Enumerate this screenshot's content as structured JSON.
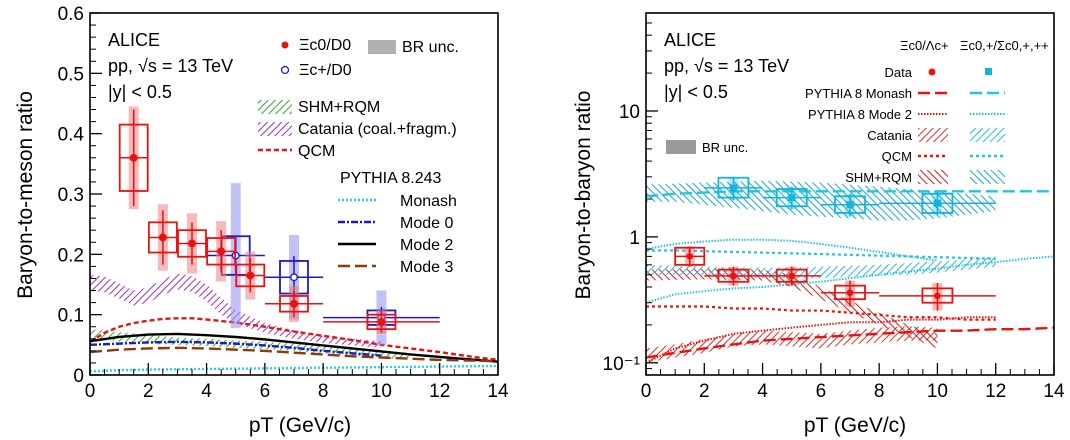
{
  "colors": {
    "xi0": "#e8120e",
    "xi_plus": "#1a1ac8",
    "sigma": "#12b4d8",
    "shm": "#2faa2f",
    "catania_left": "#9b2fc4",
    "catania_right_l": "#e0302a",
    "catania_right_r": "#2bb6dc",
    "qcm": "#e8120e",
    "monash": "#22d4e0",
    "mode0": "#1a1ac8",
    "mode2": "#000000",
    "mode3": "#8b3a0a",
    "br": "#999999"
  },
  "left": {
    "header": [
      "ALICE",
      "pp, √s = 13 TeV",
      "|y| < 0.5"
    ],
    "legend_data": [
      "Ξc0/D0",
      "Ξc+/D0"
    ],
    "br_label": "BR unc.",
    "models": [
      "SHM+RQM",
      "Catania (coal.+fragm.)",
      "QCM"
    ],
    "pythia_title": "PYTHIA 8.243",
    "pythia_modes": [
      "Monash",
      "Mode 0",
      "Mode 2",
      "Mode 3"
    ]
  },
  "right": {
    "header": [
      "ALICE",
      "pp, √s = 13 TeV",
      "|y| < 0.5"
    ],
    "col_headers": [
      "Ξc0/Λc+",
      "Ξc0,+/Σc0,+,++"
    ],
    "rows": [
      "Data",
      "PYTHIA 8 Monash",
      "PYTHIA 8 Mode 2",
      "Catania",
      "QCM",
      "SHM+RQM"
    ],
    "br_label": "BR unc."
  },
  "chart_data": [
    {
      "type": "scatter",
      "xlabel": "pT (GeV/c)",
      "ylabel": "Baryon-to-meson ratio",
      "xlim": [
        0,
        14
      ],
      "ylim": [
        0,
        0.6
      ],
      "xticks": [
        "0",
        "2",
        "4",
        "6",
        "8",
        "10",
        "12",
        "14"
      ],
      "yticks": [
        "0",
        "0.1",
        "0.2",
        "0.3",
        "0.4",
        "0.5",
        "0.6"
      ],
      "series": [
        {
          "name": "Ξc0/D0",
          "points": [
            {
              "x": 1.5,
              "y": 0.36,
              "xerr": 0.5,
              "stat": 0.08,
              "sys": 0.055,
              "br": 0.085
            },
            {
              "x": 2.5,
              "y": 0.228,
              "xerr": 0.5,
              "stat": 0.045,
              "sys": 0.025,
              "br": 0.055
            },
            {
              "x": 3.5,
              "y": 0.218,
              "xerr": 0.5,
              "stat": 0.035,
              "sys": 0.022,
              "br": 0.05
            },
            {
              "x": 4.5,
              "y": 0.205,
              "xerr": 0.5,
              "stat": 0.035,
              "sys": 0.022,
              "br": 0.05
            },
            {
              "x": 5.5,
              "y": 0.165,
              "xerr": 0.5,
              "stat": 0.028,
              "sys": 0.018,
              "br": 0.04
            },
            {
              "x": 7.0,
              "y": 0.118,
              "xerr": 1.0,
              "stat": 0.022,
              "sys": 0.013,
              "br": 0.03
            },
            {
              "x": 10.0,
              "y": 0.088,
              "xerr": 2.0,
              "stat": 0.018,
              "sys": 0.012,
              "br": 0.02
            }
          ]
        },
        {
          "name": "Ξc+/D0",
          "points": [
            {
              "x": 5.0,
              "y": 0.198,
              "xerr": 1.0,
              "stat": 0.03,
              "sys": 0.032,
              "br": 0.12
            },
            {
              "x": 7.0,
              "y": 0.162,
              "xerr": 1.0,
              "stat": 0.035,
              "sys": 0.027,
              "br": 0.07
            },
            {
              "x": 10.0,
              "y": 0.095,
              "xerr": 2.0,
              "stat": 0.018,
              "sys": 0.012,
              "br": 0.045
            }
          ]
        }
      ],
      "models": {
        "SHM+RQM": {
          "x": [
            0,
            0.5,
            1,
            1.5,
            2,
            3,
            4,
            5,
            6,
            7,
            8,
            9,
            10,
            11
          ],
          "lo": [
            0.062,
            0.058,
            0.056,
            0.054,
            0.052,
            0.05,
            0.048,
            0.045,
            0.043,
            0.04,
            0.036,
            0.032,
            0.028,
            0.025
          ],
          "hi": [
            0.076,
            0.074,
            0.071,
            0.069,
            0.066,
            0.062,
            0.06,
            0.057,
            0.055,
            0.052,
            0.048,
            0.044,
            0.04,
            0.037
          ]
        },
        "Catania": {
          "x": [
            0,
            0.5,
            1,
            1.5,
            2,
            2.5,
            3,
            3.5,
            4,
            4.5,
            5,
            6,
            7,
            8,
            9,
            10
          ],
          "lo": [
            0.14,
            0.137,
            0.127,
            0.115,
            0.12,
            0.133,
            0.142,
            0.138,
            0.122,
            0.1,
            0.085,
            0.07,
            0.06,
            0.053,
            0.049,
            0.045
          ],
          "hi": [
            0.166,
            0.163,
            0.152,
            0.14,
            0.145,
            0.158,
            0.168,
            0.164,
            0.15,
            0.128,
            0.108,
            0.086,
            0.074,
            0.065,
            0.06,
            0.056
          ]
        },
        "QCM": {
          "x": [
            0,
            0.5,
            1,
            1.5,
            2,
            2.5,
            3,
            3.5,
            4,
            5,
            6,
            7,
            8,
            9,
            10,
            11,
            12,
            13,
            14
          ],
          "y": [
            0.055,
            0.07,
            0.08,
            0.086,
            0.09,
            0.093,
            0.094,
            0.094,
            0.092,
            0.087,
            0.08,
            0.072,
            0.065,
            0.058,
            0.05,
            0.044,
            0.038,
            0.031,
            0.025
          ]
        },
        "Monash": {
          "x": [
            0,
            1,
            2,
            4,
            6,
            8,
            10,
            12,
            14
          ],
          "y": [
            0.006,
            0.008,
            0.009,
            0.01,
            0.011,
            0.012,
            0.013,
            0.014,
            0.015
          ]
        },
        "Mode 0": {
          "x": [
            0,
            1,
            2,
            3,
            4,
            5,
            6,
            7,
            8,
            9,
            10
          ],
          "y": [
            0.05,
            0.052,
            0.054,
            0.055,
            0.054,
            0.052,
            0.049,
            0.045,
            0.04,
            0.036,
            0.032
          ]
        },
        "Mode 2": {
          "x": [
            0,
            1,
            2,
            3,
            4,
            5,
            6,
            7,
            8,
            9,
            10,
            11,
            12,
            13,
            14
          ],
          "y": [
            0.056,
            0.063,
            0.067,
            0.068,
            0.066,
            0.063,
            0.059,
            0.054,
            0.049,
            0.044,
            0.039,
            0.034,
            0.03,
            0.026,
            0.022
          ]
        },
        "Mode 3": {
          "x": [
            0,
            1,
            2,
            3,
            4,
            5,
            6,
            7,
            8,
            9,
            10,
            11,
            12,
            13,
            14
          ],
          "y": [
            0.038,
            0.042,
            0.044,
            0.045,
            0.044,
            0.042,
            0.04,
            0.037,
            0.034,
            0.031,
            0.029,
            0.027,
            0.025,
            0.024,
            0.023
          ]
        }
      }
    },
    {
      "type": "scatter",
      "xlabel": "pT (GeV/c)",
      "ylabel": "Baryon-to-baryon ratio",
      "xlim": [
        0,
        14
      ],
      "ylim": [
        0.08,
        60
      ],
      "yscale": "log",
      "xticks": [
        "0",
        "2",
        "4",
        "6",
        "8",
        "10",
        "12",
        "14"
      ],
      "yticks": [
        "10⁻¹",
        "1",
        "10"
      ],
      "series": [
        {
          "name": "Ξc0/Λc+",
          "points": [
            {
              "x": 1.5,
              "y": 0.7,
              "xerr": 0.5,
              "statlo": 0.58,
              "stathi": 0.84,
              "syslo": 0.6,
              "syshi": 0.82
            },
            {
              "x": 3.0,
              "y": 0.49,
              "xerr": 1.0,
              "statlo": 0.41,
              "stathi": 0.58,
              "syslo": 0.44,
              "syshi": 0.55
            },
            {
              "x": 5.0,
              "y": 0.49,
              "xerr": 1.0,
              "statlo": 0.41,
              "stathi": 0.58,
              "syslo": 0.44,
              "syshi": 0.55
            },
            {
              "x": 7.0,
              "y": 0.36,
              "xerr": 1.0,
              "statlo": 0.28,
              "stathi": 0.45,
              "syslo": 0.32,
              "syshi": 0.41
            },
            {
              "x": 10.0,
              "y": 0.34,
              "xerr": 2.0,
              "statlo": 0.26,
              "stathi": 0.43,
              "syslo": 0.3,
              "syshi": 0.39
            }
          ]
        },
        {
          "name": "Ξc0,+/Σc0,+,++",
          "points": [
            {
              "x": 3.0,
              "y": 2.45,
              "xerr": 1.0,
              "statlo": 1.95,
              "stathi": 3.0,
              "syslo": 2.05,
              "syshi": 2.95
            },
            {
              "x": 5.0,
              "y": 2.05,
              "xerr": 1.0,
              "statlo": 1.65,
              "stathi": 2.5,
              "syslo": 1.75,
              "syshi": 2.4
            },
            {
              "x": 7.0,
              "y": 1.8,
              "xerr": 1.0,
              "statlo": 1.45,
              "stathi": 2.2,
              "syslo": 1.55,
              "syshi": 2.1
            },
            {
              "x": 10.0,
              "y": 1.85,
              "xerr": 2.0,
              "statlo": 1.5,
              "stathi": 2.25,
              "syslo": 1.55,
              "syshi": 2.2
            }
          ]
        }
      ],
      "models": {
        "Catania_L": {
          "x": [
            0,
            1,
            2,
            3,
            4,
            5,
            6,
            7,
            8,
            9,
            10
          ],
          "lo": [
            0.1,
            0.11,
            0.12,
            0.135,
            0.14,
            0.135,
            0.13,
            0.14,
            0.145,
            0.15,
            0.15
          ],
          "hi": [
            0.13,
            0.14,
            0.155,
            0.17,
            0.18,
            0.175,
            0.17,
            0.18,
            0.19,
            0.195,
            0.19
          ]
        },
        "SHM_L": {
          "x": [
            0,
            2,
            4,
            5,
            6,
            7,
            8,
            9,
            10
          ],
          "lo": [
            0.45,
            0.46,
            0.45,
            0.4,
            0.32,
            0.25,
            0.2,
            0.16,
            0.13
          ],
          "hi": [
            0.55,
            0.56,
            0.55,
            0.5,
            0.4,
            0.31,
            0.25,
            0.2,
            0.17
          ]
        },
        "Catania_R": {
          "x": [
            0,
            1,
            2,
            3,
            4,
            5,
            6,
            7,
            8,
            9,
            10,
            11,
            12
          ],
          "lo": [
            0.5,
            0.5,
            0.49,
            0.48,
            0.47,
            0.47,
            0.47,
            0.48,
            0.49,
            0.5,
            0.52,
            0.55,
            0.58
          ],
          "hi": [
            0.6,
            0.59,
            0.58,
            0.57,
            0.57,
            0.57,
            0.58,
            0.59,
            0.6,
            0.62,
            0.64,
            0.66,
            0.7
          ]
        },
        "SHM_R": {
          "x": [
            0,
            1,
            2,
            3,
            4,
            5,
            6,
            7,
            8,
            9,
            10,
            11,
            12
          ],
          "lo": [
            1.9,
            1.9,
            1.8,
            1.7,
            1.6,
            1.5,
            1.45,
            1.4,
            1.35,
            1.35,
            1.4,
            1.5,
            1.6
          ],
          "hi": [
            2.6,
            2.65,
            2.7,
            2.75,
            2.8,
            2.75,
            2.7,
            2.6,
            2.5,
            2.4,
            2.3,
            2.2,
            2.1
          ]
        },
        "Monash_L": {
          "x": [
            0,
            1,
            2,
            3,
            4,
            5,
            6,
            7,
            8,
            9,
            10,
            11,
            12,
            13,
            14
          ],
          "y": [
            0.11,
            0.12,
            0.13,
            0.14,
            0.15,
            0.155,
            0.16,
            0.165,
            0.17,
            0.175,
            0.18,
            0.18,
            0.185,
            0.185,
            0.19
          ]
        },
        "Mode2_L": {
          "x": [
            0,
            1,
            2,
            3,
            4,
            5,
            6,
            7,
            8,
            9,
            10,
            11,
            12
          ],
          "y": [
            0.1,
            0.13,
            0.15,
            0.17,
            0.18,
            0.19,
            0.2,
            0.21,
            0.21,
            0.22,
            0.22,
            0.23,
            0.23
          ]
        },
        "QCM_L": {
          "x": [
            0,
            1,
            2,
            3,
            4,
            5,
            6,
            7,
            8,
            9,
            10,
            11,
            12
          ],
          "y": [
            0.28,
            0.28,
            0.28,
            0.27,
            0.27,
            0.26,
            0.26,
            0.25,
            0.24,
            0.23,
            0.23,
            0.22,
            0.22
          ]
        },
        "Monash_R": {
          "x": [
            0,
            1,
            2,
            3,
            4,
            5,
            6,
            7,
            8,
            9,
            10,
            11,
            12,
            13,
            14
          ],
          "y": [
            2.1,
            2.2,
            2.25,
            2.3,
            2.3,
            2.3,
            2.3,
            2.3,
            2.3,
            2.3,
            2.3,
            2.3,
            2.3,
            2.3,
            2.3
          ]
        },
        "Mode2_R": {
          "x": [
            0,
            1,
            2,
            3,
            4,
            5,
            6,
            7,
            8,
            9,
            10,
            11,
            12,
            13,
            14
          ],
          "y": [
            0.3,
            0.35,
            0.37,
            0.39,
            0.4,
            0.42,
            0.44,
            0.47,
            0.5,
            0.53,
            0.56,
            0.6,
            0.63,
            0.67,
            0.7
          ]
        },
        "Mode2_R_hi": {
          "x": [
            0,
            1,
            2,
            3,
            4,
            5,
            6,
            7,
            8,
            9,
            10
          ],
          "y": [
            0.8,
            0.88,
            0.92,
            0.95,
            0.95,
            0.93,
            0.88,
            0.82,
            0.76,
            0.7,
            0.65
          ]
        },
        "QCM_R": {
          "x": [
            0,
            1,
            2,
            3,
            4,
            5,
            6,
            7,
            8,
            9,
            10,
            11,
            12
          ],
          "y": [
            0.78,
            0.78,
            0.77,
            0.76,
            0.75,
            0.74,
            0.73,
            0.72,
            0.71,
            0.7,
            0.69,
            0.68,
            0.67
          ]
        }
      }
    }
  ]
}
